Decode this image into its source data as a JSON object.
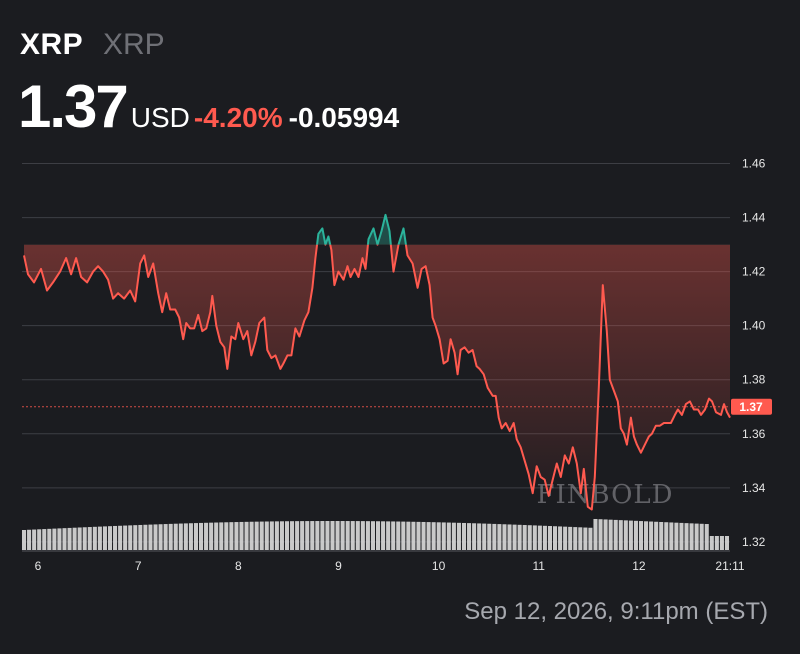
{
  "header": {
    "symbol": "XRP",
    "name": "XRP",
    "price": "1.37",
    "unit": "USD",
    "change_pct": "-4.20%",
    "change_abs": "-0.05994"
  },
  "footer": {
    "timestamp": "Sep 12, 2026, 9:11pm (EST)"
  },
  "watermark": "FINBOLD",
  "colors": {
    "up": "#2bb39b",
    "down": "#ff5a4f",
    "background": "#1b1c20",
    "volume": "#d8d8d8"
  },
  "chart_data": {
    "type": "line",
    "title": "",
    "xlabel": "",
    "ylabel": "",
    "x_ticks": [
      "6",
      "7",
      "8",
      "9",
      "10",
      "11",
      "12",
      "21:11"
    ],
    "y_ticks": [
      "1.46",
      "1.44",
      "1.42",
      "1.40",
      "1.38",
      "1.36",
      "1.34",
      "1.32"
    ],
    "ylim": [
      1.317,
      1.465
    ],
    "xlim": [
      5.84,
      12.91
    ],
    "current_price_label": "1.37",
    "current_price": 1.37,
    "series": [
      {
        "values": [
          [
            5.86,
            1.426
          ],
          [
            5.9,
            1.419
          ],
          [
            5.96,
            1.416
          ],
          [
            6.03,
            1.421
          ],
          [
            6.09,
            1.413
          ],
          [
            6.15,
            1.416
          ],
          [
            6.22,
            1.42
          ],
          [
            6.28,
            1.425
          ],
          [
            6.33,
            1.419
          ],
          [
            6.38,
            1.425
          ],
          [
            6.43,
            1.418
          ],
          [
            6.49,
            1.416
          ],
          [
            6.55,
            1.42
          ],
          [
            6.6,
            1.422
          ],
          [
            6.65,
            1.42
          ],
          [
            6.7,
            1.417
          ],
          [
            6.75,
            1.41
          ],
          [
            6.8,
            1.412
          ],
          [
            6.86,
            1.41
          ],
          [
            6.92,
            1.413
          ],
          [
            6.97,
            1.409
          ],
          [
            7.02,
            1.423
          ],
          [
            7.06,
            1.426
          ],
          [
            7.1,
            1.418
          ],
          [
            7.15,
            1.423
          ],
          [
            7.2,
            1.412
          ],
          [
            7.24,
            1.405
          ],
          [
            7.28,
            1.412
          ],
          [
            7.32,
            1.406
          ],
          [
            7.37,
            1.406
          ],
          [
            7.41,
            1.403
          ],
          [
            7.45,
            1.395
          ],
          [
            7.48,
            1.401
          ],
          [
            7.52,
            1.399
          ],
          [
            7.56,
            1.399
          ],
          [
            7.6,
            1.404
          ],
          [
            7.64,
            1.398
          ],
          [
            7.68,
            1.399
          ],
          [
            7.72,
            1.405
          ],
          [
            7.74,
            1.411
          ],
          [
            7.78,
            1.4
          ],
          [
            7.82,
            1.394
          ],
          [
            7.86,
            1.392
          ],
          [
            7.89,
            1.384
          ],
          [
            7.93,
            1.396
          ],
          [
            7.97,
            1.395
          ],
          [
            8.0,
            1.401
          ],
          [
            8.05,
            1.395
          ],
          [
            8.09,
            1.398
          ],
          [
            8.13,
            1.389
          ],
          [
            8.17,
            1.394
          ],
          [
            8.21,
            1.401
          ],
          [
            8.26,
            1.403
          ],
          [
            8.29,
            1.391
          ],
          [
            8.33,
            1.388
          ],
          [
            8.37,
            1.389
          ],
          [
            8.42,
            1.384
          ],
          [
            8.45,
            1.386
          ],
          [
            8.49,
            1.389
          ],
          [
            8.53,
            1.389
          ],
          [
            8.57,
            1.399
          ],
          [
            8.61,
            1.396
          ],
          [
            8.66,
            1.402
          ],
          [
            8.7,
            1.405
          ],
          [
            8.74,
            1.414
          ],
          [
            8.77,
            1.425
          ],
          [
            8.8,
            1.434
          ],
          [
            8.84,
            1.436
          ],
          [
            8.87,
            1.43
          ],
          [
            8.9,
            1.433
          ],
          [
            8.93,
            1.428
          ],
          [
            8.96,
            1.415
          ],
          [
            9.0,
            1.42
          ],
          [
            9.05,
            1.417
          ],
          [
            9.09,
            1.422
          ],
          [
            9.12,
            1.418
          ],
          [
            9.16,
            1.421
          ],
          [
            9.2,
            1.418
          ],
          [
            9.24,
            1.425
          ],
          [
            9.27,
            1.421
          ],
          [
            9.3,
            1.432
          ],
          [
            9.35,
            1.436
          ],
          [
            9.39,
            1.43
          ],
          [
            9.43,
            1.435
          ],
          [
            9.47,
            1.441
          ],
          [
            9.51,
            1.435
          ],
          [
            9.55,
            1.42
          ],
          [
            9.6,
            1.43
          ],
          [
            9.65,
            1.436
          ],
          [
            9.69,
            1.426
          ],
          [
            9.74,
            1.423
          ],
          [
            9.79,
            1.414
          ],
          [
            9.83,
            1.421
          ],
          [
            9.87,
            1.422
          ],
          [
            9.91,
            1.415
          ],
          [
            9.94,
            1.403
          ],
          [
            9.97,
            1.4
          ],
          [
            10.01,
            1.395
          ],
          [
            10.05,
            1.386
          ],
          [
            10.09,
            1.387
          ],
          [
            10.12,
            1.395
          ],
          [
            10.16,
            1.39
          ],
          [
            10.19,
            1.382
          ],
          [
            10.22,
            1.391
          ],
          [
            10.26,
            1.392
          ],
          [
            10.3,
            1.39
          ],
          [
            10.34,
            1.391
          ],
          [
            10.38,
            1.385
          ],
          [
            10.41,
            1.384
          ],
          [
            10.45,
            1.382
          ],
          [
            10.49,
            1.377
          ],
          [
            10.54,
            1.374
          ],
          [
            10.57,
            1.374
          ],
          [
            10.6,
            1.366
          ],
          [
            10.63,
            1.362
          ],
          [
            10.67,
            1.364
          ],
          [
            10.71,
            1.361
          ],
          [
            10.75,
            1.364
          ],
          [
            10.78,
            1.358
          ],
          [
            10.82,
            1.355
          ],
          [
            10.86,
            1.35
          ],
          [
            10.9,
            1.345
          ],
          [
            10.94,
            1.338
          ],
          [
            10.98,
            1.348
          ],
          [
            11.02,
            1.344
          ],
          [
            11.06,
            1.343
          ],
          [
            11.1,
            1.337
          ],
          [
            11.14,
            1.343
          ],
          [
            11.18,
            1.349
          ],
          [
            11.22,
            1.344
          ],
          [
            11.26,
            1.352
          ],
          [
            11.3,
            1.349
          ],
          [
            11.34,
            1.355
          ],
          [
            11.38,
            1.349
          ],
          [
            11.42,
            1.338
          ],
          [
            11.45,
            1.347
          ],
          [
            11.49,
            1.333
          ],
          [
            11.53,
            1.332
          ],
          [
            11.56,
            1.344
          ],
          [
            11.6,
            1.377
          ],
          [
            11.64,
            1.415
          ],
          [
            11.68,
            1.398
          ],
          [
            11.71,
            1.38
          ],
          [
            11.75,
            1.376
          ],
          [
            11.79,
            1.372
          ],
          [
            11.82,
            1.362
          ],
          [
            11.85,
            1.36
          ],
          [
            11.88,
            1.356
          ],
          [
            11.92,
            1.366
          ],
          [
            11.95,
            1.359
          ],
          [
            11.98,
            1.356
          ],
          [
            12.02,
            1.353
          ],
          [
            12.06,
            1.356
          ],
          [
            12.1,
            1.359
          ],
          [
            12.13,
            1.36
          ],
          [
            12.17,
            1.363
          ],
          [
            12.21,
            1.363
          ],
          [
            12.25,
            1.364
          ],
          [
            12.29,
            1.364
          ],
          [
            12.32,
            1.364
          ],
          [
            12.36,
            1.367
          ],
          [
            12.39,
            1.369
          ],
          [
            12.43,
            1.367
          ],
          [
            12.47,
            1.371
          ],
          [
            12.51,
            1.372
          ],
          [
            12.55,
            1.369
          ],
          [
            12.59,
            1.369
          ],
          [
            12.62,
            1.367
          ],
          [
            12.66,
            1.369
          ],
          [
            12.7,
            1.373
          ],
          [
            12.73,
            1.372
          ],
          [
            12.77,
            1.368
          ],
          [
            12.82,
            1.367
          ],
          [
            12.85,
            1.371
          ],
          [
            12.88,
            1.368
          ],
          [
            12.91,
            1.366
          ]
        ]
      }
    ],
    "reference_price": 1.43
  }
}
